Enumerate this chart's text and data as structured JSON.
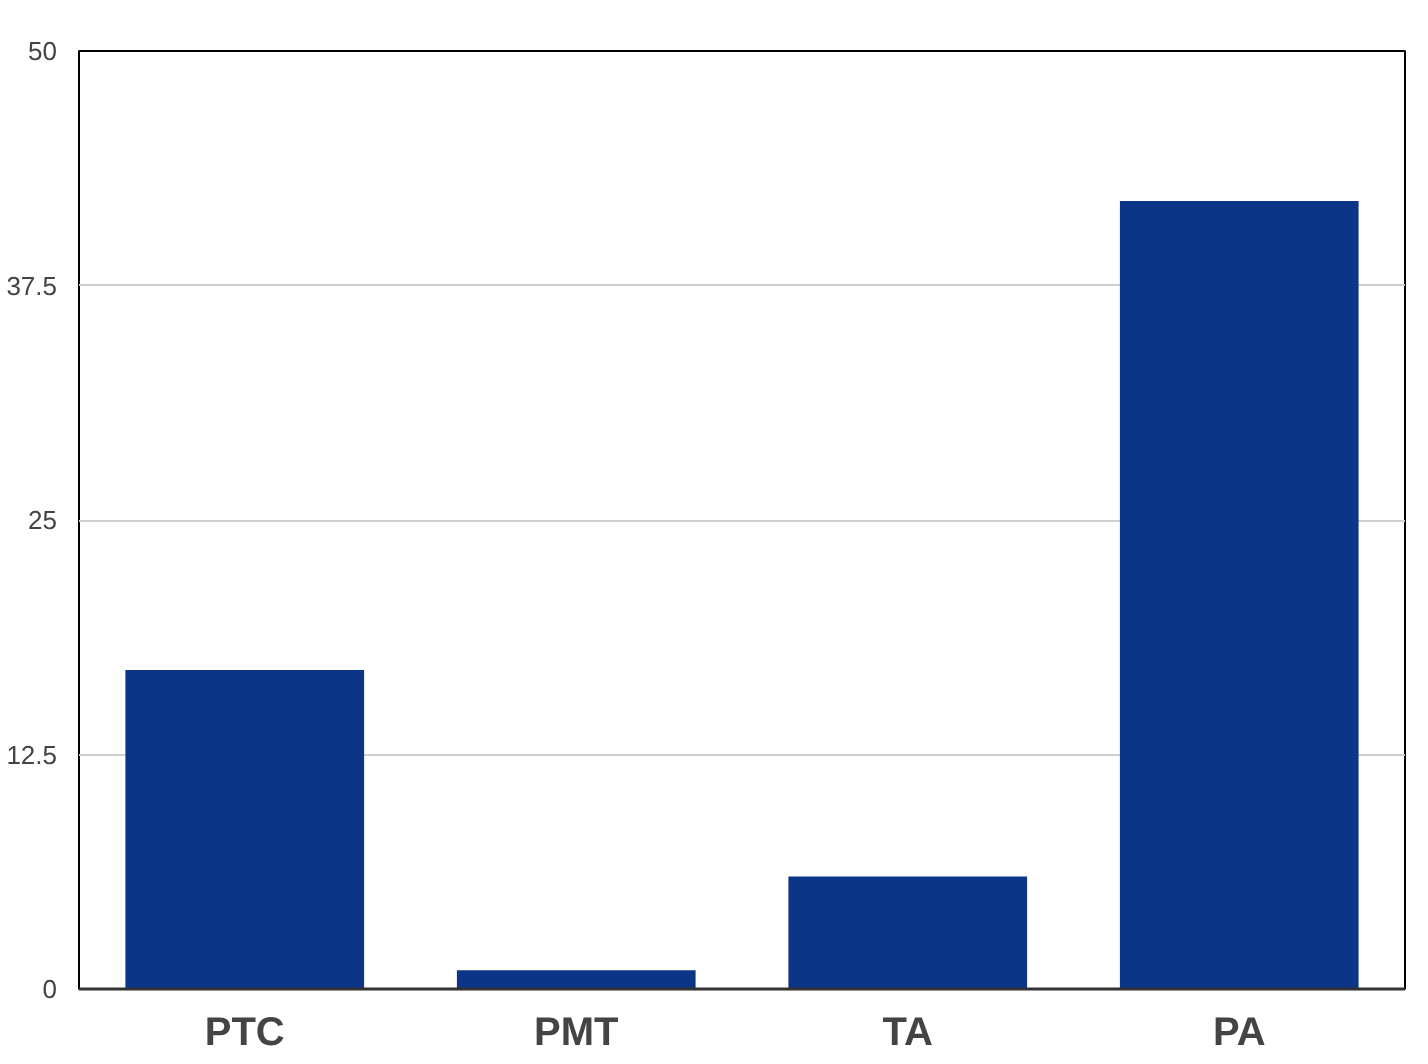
{
  "chart_data": {
    "type": "bar",
    "categories": [
      "PTC",
      "PMT",
      "TA",
      "PA"
    ],
    "values": [
      17,
      1,
      6,
      42
    ],
    "color": "#0c3487",
    "ylim": [
      0,
      50
    ],
    "yticks": [
      0,
      12.5,
      25,
      37.5,
      50
    ],
    "grid": "y"
  }
}
